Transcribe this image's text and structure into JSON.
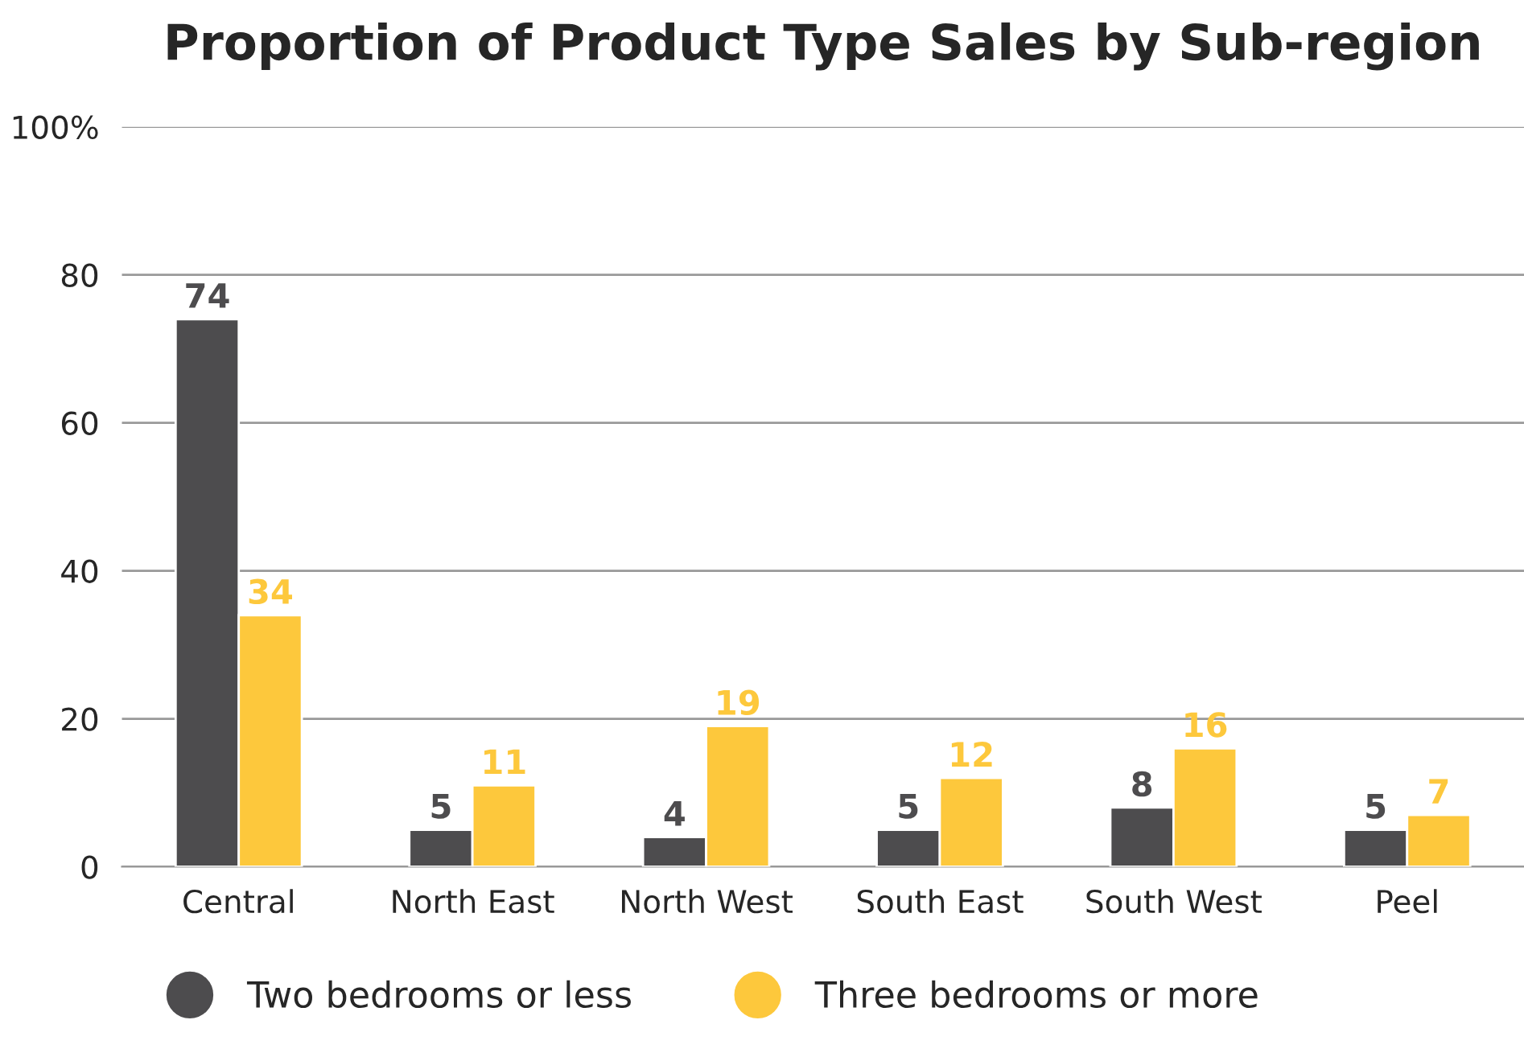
{
  "chart_data": {
    "type": "bar",
    "title": "Proportion of Product Type Sales by Sub-region",
    "categories": [
      "Central",
      "North East",
      "North West",
      "South East",
      "South West",
      "Peel"
    ],
    "series": [
      {
        "name": "Two bedrooms or less",
        "color": "#4d4c4e",
        "values": [
          74,
          5,
          4,
          5,
          8,
          5
        ]
      },
      {
        "name": "Three bedrooms or more",
        "color": "#fdc83c",
        "values": [
          34,
          11,
          19,
          12,
          16,
          7
        ]
      }
    ],
    "ylim": [
      0,
      100
    ],
    "yticks": [
      0,
      20,
      40,
      60,
      80,
      {
        "value": 100,
        "label": "100%"
      }
    ],
    "grid": "y",
    "legend": "bottom",
    "data_labels": true
  }
}
